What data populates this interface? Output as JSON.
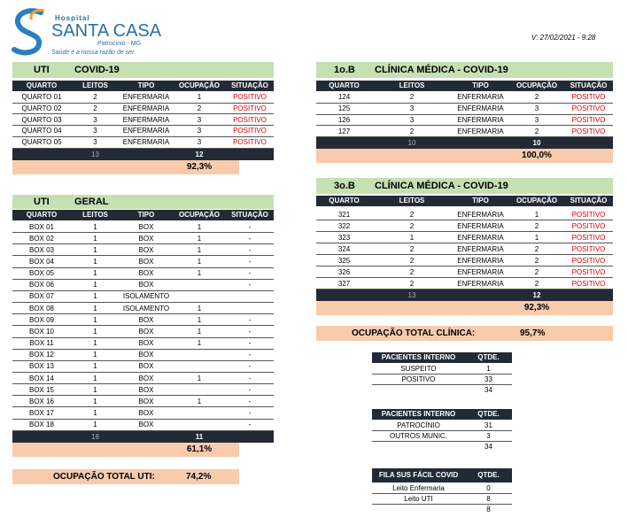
{
  "header": {
    "hospital_small": "Hospital",
    "hospital_name": "SANTA CASA",
    "location": "Patrocínio - MG",
    "slogan": "Saúde é a nossa razão de ser.",
    "version": "V: 27/02/2021 - 9:28"
  },
  "sections": [
    {
      "unit": "UTI",
      "name": "COVID-19",
      "columns": [
        "QUARTO",
        "LEITOS",
        "TIPO",
        "OCUPAÇÃO",
        "SITUAÇÃO"
      ],
      "rows": [
        [
          "QUARTO 01",
          2,
          "ENFERMARIA",
          1,
          "POSITIVO"
        ],
        [
          "QUARTO 02",
          2,
          "ENFERMARIA",
          2,
          "POSITIVO"
        ],
        [
          "QUARTO 03",
          3,
          "ENFERMARIA",
          3,
          "POSITIVO"
        ],
        [
          "QUARTO 04",
          3,
          "ENFERMARIA",
          3,
          "POSITIVO"
        ],
        [
          "QUARTO 05",
          3,
          "ENFERMARIA",
          3,
          "POSITIVO"
        ]
      ],
      "total_leitos": 13,
      "total_ocupacao": 12,
      "occupancy": "92,3%"
    },
    {
      "unit": "UTI",
      "name": "GERAL",
      "columns": [
        "QUARTO",
        "LEITOS",
        "TIPO",
        "OCUPAÇÃO",
        "SITUAÇÃO"
      ],
      "rows": [
        [
          "BOX 01",
          1,
          "BOX",
          1,
          "-"
        ],
        [
          "BOX 02",
          1,
          "BOX",
          1,
          "-"
        ],
        [
          "BOX 03",
          1,
          "BOX",
          1,
          "-"
        ],
        [
          "BOX 04",
          1,
          "BOX",
          1,
          "-"
        ],
        [
          "BOX 05",
          1,
          "BOX",
          1,
          "-"
        ],
        [
          "BOX 06",
          1,
          "BOX",
          null,
          "-"
        ],
        [
          "BOX 07",
          1,
          "ISOLAMENTO",
          null,
          null
        ],
        [
          "BOX 08",
          1,
          "ISOLAMENTO",
          1,
          null
        ],
        [
          "BOX 09",
          1,
          "BOX",
          1,
          "-"
        ],
        [
          "BOX 10",
          1,
          "BOX",
          1,
          "-"
        ],
        [
          "BOX 11",
          1,
          "BOX",
          1,
          "-"
        ],
        [
          "BOX 12",
          1,
          "BOX",
          null,
          "-"
        ],
        [
          "BOX 13",
          1,
          "BOX",
          null,
          "-"
        ],
        [
          "BOX 14",
          1,
          "BOX",
          1,
          "-"
        ],
        [
          "BOX 15",
          1,
          "BOX",
          null,
          "-"
        ],
        [
          "BOX 16",
          1,
          "BOX",
          1,
          "-"
        ],
        [
          "BOX 17",
          1,
          "BOX",
          null,
          "-"
        ],
        [
          "BOX 18",
          1,
          "BOX",
          null,
          "-"
        ]
      ],
      "total_leitos": 18,
      "total_ocupacao": 11,
      "occupancy": "61,1%"
    },
    {
      "unit": "1o.B",
      "name": "CLÍNICA MÉDICA - COVID-19",
      "columns": [
        "QUARTO",
        "LEITOS",
        "TIPO",
        "OCUPAÇÃO",
        "SITUAÇÃO"
      ],
      "rows": [
        [
          124,
          2,
          "ENFERMARIA",
          2,
          "POSITIVO"
        ],
        [
          125,
          3,
          "ENFERMARIA",
          3,
          "POSITIVO"
        ],
        [
          126,
          3,
          "ENFERMARIA",
          3,
          "POSITIVO"
        ],
        [
          127,
          2,
          "ENFERMARIA",
          2,
          "POSITIVO"
        ]
      ],
      "total_leitos": 10,
      "total_ocupacao": 10,
      "occupancy": "100,0%"
    },
    {
      "unit": "3o.B",
      "name": "CLÍNICA MÉDICA - COVID-19",
      "columns": [
        "QUARTO",
        "LEITOS",
        "TIPO",
        "OCUPAÇÃO",
        "SITUAÇÃO"
      ],
      "rows": [
        [
          321,
          2,
          "ENFERMARIA",
          1,
          "POSITIVO"
        ],
        [
          322,
          2,
          "ENFERMARIA",
          2,
          "POSITIVO"
        ],
        [
          323,
          1,
          "ENFERMARIA",
          1,
          "POSITIVO"
        ],
        [
          324,
          2,
          "ENFERMARIA",
          2,
          "POSITIVO"
        ],
        [
          325,
          2,
          "ENFERMARIA",
          2,
          "POSITIVO"
        ],
        [
          326,
          2,
          "ENFERMARIA",
          2,
          "POSITIVO"
        ],
        [
          327,
          2,
          "ENFERMARIA",
          2,
          "POSITIVO"
        ]
      ],
      "total_leitos": 13,
      "total_ocupacao": 12,
      "occupancy": "92,3%"
    }
  ],
  "uti_total": {
    "label": "OCUPAÇÃO TOTAL UTI:",
    "value": "74,2%"
  },
  "clinica_total": {
    "label": "OCUPAÇÃO TOTAL CLÍNICA:",
    "value": "95,7%"
  },
  "summaries": [
    {
      "columns": [
        "PACIENTES INTERNO",
        "QTDE."
      ],
      "rows": [
        [
          "SUSPEITO",
          1
        ],
        [
          "POSITIVO",
          33
        ]
      ],
      "total": 34
    },
    {
      "columns": [
        "PACIENTES INTERNO",
        "QTDE."
      ],
      "rows": [
        [
          "PATROCÍNIO",
          31
        ],
        [
          "OUTROS MUNIC.",
          3
        ]
      ],
      "total": 34
    },
    {
      "columns": [
        "FILA SUS FÁCIL COVID",
        "QTDE."
      ],
      "rows": [
        [
          "Leito Enfermaria",
          0
        ],
        [
          "Leito UTI",
          8
        ]
      ],
      "total": 8
    }
  ]
}
